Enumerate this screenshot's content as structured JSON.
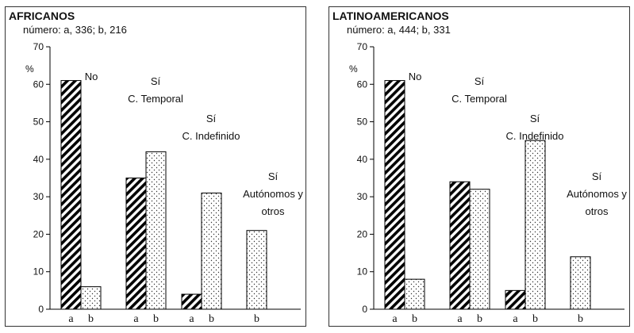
{
  "chart_data": [
    {
      "type": "bar",
      "title": "AFRICANOS",
      "subtitle": "número: a, 336; b, 216",
      "ylabel": "%",
      "ylim": [
        0,
        70
      ],
      "yticks": [
        0,
        10,
        20,
        30,
        40,
        50,
        60,
        70
      ],
      "grid": false,
      "groups": [
        {
          "label_lines": [
            "No"
          ],
          "bars": [
            {
              "series": "a",
              "value": 61
            },
            {
              "series": "b",
              "value": 6
            }
          ]
        },
        {
          "label_lines": [
            "Sí",
            "C. Temporal"
          ],
          "bars": [
            {
              "series": "a",
              "value": 35
            },
            {
              "series": "b",
              "value": 42
            }
          ]
        },
        {
          "label_lines": [
            "Sí",
            "C. Indefinido"
          ],
          "bars": [
            {
              "series": "a",
              "value": 4
            },
            {
              "series": "b",
              "value": 31
            }
          ]
        },
        {
          "label_lines": [
            "Sí",
            "Autónomos y",
            "otros"
          ],
          "bars": [
            {
              "series": "b",
              "value": 21
            }
          ]
        }
      ]
    },
    {
      "type": "bar",
      "title": "LATINOAMERICANOS",
      "subtitle": "número: a, 444; b, 331",
      "ylabel": "%",
      "ylim": [
        0,
        70
      ],
      "yticks": [
        0,
        10,
        20,
        30,
        40,
        50,
        60,
        70
      ],
      "grid": false,
      "groups": [
        {
          "label_lines": [
            "No"
          ],
          "bars": [
            {
              "series": "a",
              "value": 61
            },
            {
              "series": "b",
              "value": 8
            }
          ]
        },
        {
          "label_lines": [
            "Sí",
            "C. Temporal"
          ],
          "bars": [
            {
              "series": "a",
              "value": 34
            },
            {
              "series": "b",
              "value": 32
            }
          ]
        },
        {
          "label_lines": [
            "Sí",
            "C. Indefinido"
          ],
          "bars": [
            {
              "series": "a",
              "value": 5
            },
            {
              "series": "b",
              "value": 45
            }
          ]
        },
        {
          "label_lines": [
            "Sí",
            "Autónomos y",
            "otros"
          ],
          "bars": [
            {
              "series": "b",
              "value": 14
            }
          ]
        }
      ]
    }
  ],
  "colors": {
    "bar_outline": "#000000",
    "hatch": "#000000",
    "dots": "#333333",
    "background": "#ffffff"
  }
}
